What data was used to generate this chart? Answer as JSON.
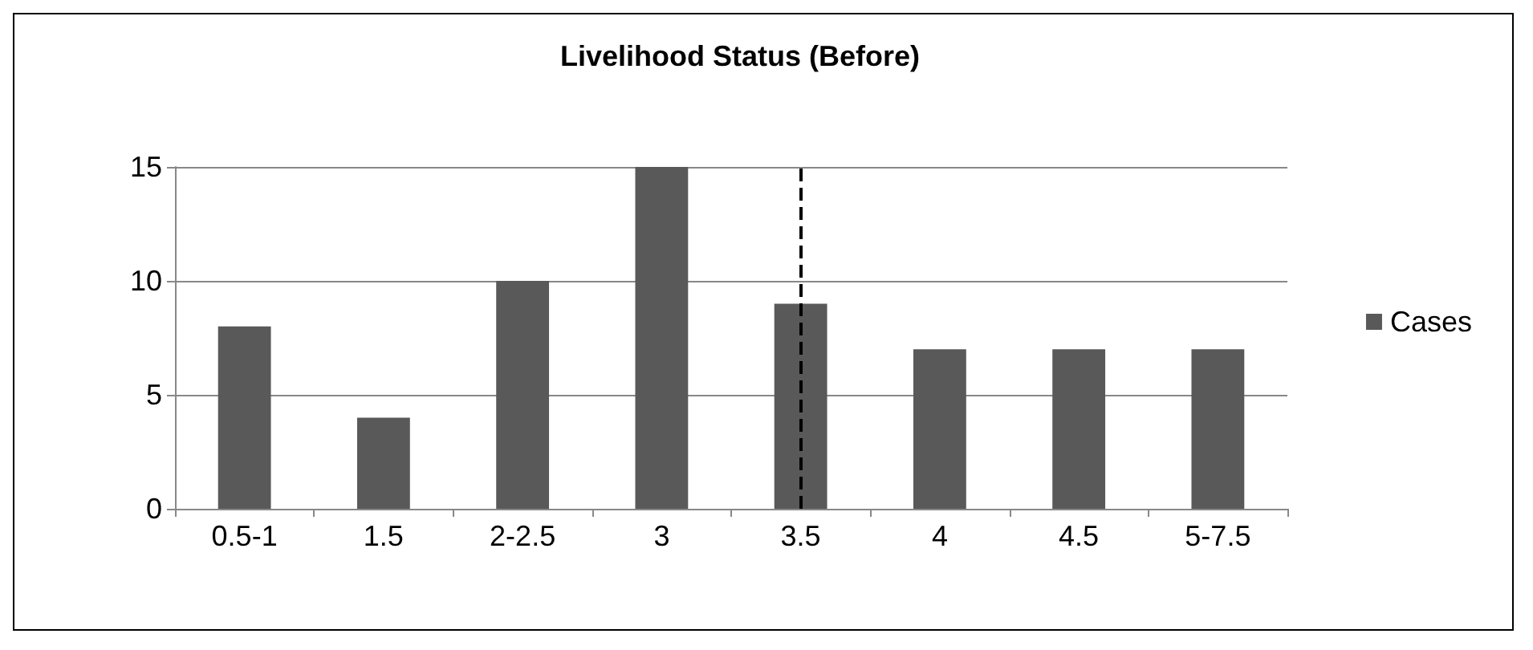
{
  "chart_data": {
    "type": "bar",
    "title": "Livelihood Status (Before)",
    "categories": [
      "0.5-1",
      "1.5",
      "2-2.5",
      "3",
      "3.5",
      "4",
      "4.5",
      "5-7.5"
    ],
    "series": [
      {
        "name": "Cases",
        "color": "#595959",
        "values": [
          8,
          4,
          10,
          15,
          9,
          7,
          7,
          7
        ]
      }
    ],
    "ylim": [
      0,
      15
    ],
    "yticks": [
      0,
      5,
      10,
      15
    ],
    "grid": "y",
    "legend": "right",
    "ref_lines": [
      {
        "axis": "x",
        "value": "3.5",
        "color": "#000000",
        "line_style": "dashed"
      }
    ]
  }
}
